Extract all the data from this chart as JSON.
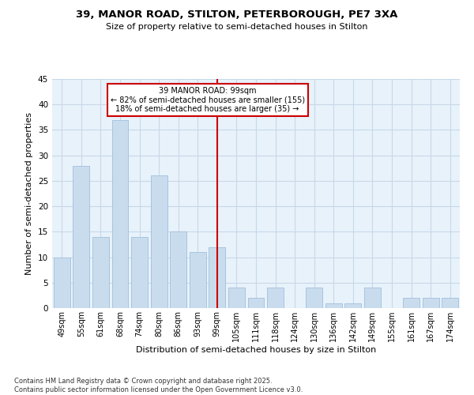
{
  "title1": "39, MANOR ROAD, STILTON, PETERBOROUGH, PE7 3XA",
  "title2": "Size of property relative to semi-detached houses in Stilton",
  "xlabel": "Distribution of semi-detached houses by size in Stilton",
  "ylabel": "Number of semi-detached properties",
  "categories": [
    "49sqm",
    "55sqm",
    "61sqm",
    "68sqm",
    "74sqm",
    "80sqm",
    "86sqm",
    "93sqm",
    "99sqm",
    "105sqm",
    "111sqm",
    "118sqm",
    "124sqm",
    "130sqm",
    "136sqm",
    "142sqm",
    "149sqm",
    "155sqm",
    "161sqm",
    "167sqm",
    "174sqm"
  ],
  "values": [
    10,
    28,
    14,
    37,
    14,
    26,
    15,
    11,
    12,
    4,
    2,
    4,
    0,
    4,
    1,
    1,
    4,
    0,
    2,
    2,
    2
  ],
  "bar_color": "#c9dcee",
  "bar_edgecolor": "#a8c4dd",
  "property_line_index": 8,
  "property_label": "39 MANOR ROAD: 99sqm",
  "annotation_line1": "← 82% of semi-detached houses are smaller (155)",
  "annotation_line2": "18% of semi-detached houses are larger (35) →",
  "vline_color": "#cc0000",
  "annotation_box_edgecolor": "#cc0000",
  "annotation_box_facecolor": "#ffffff",
  "ylim": [
    0,
    45
  ],
  "yticks": [
    0,
    5,
    10,
    15,
    20,
    25,
    30,
    35,
    40,
    45
  ],
  "grid_color": "#c8d8e8",
  "bg_color": "#e8f2fb",
  "footnote": "Contains HM Land Registry data © Crown copyright and database right 2025.\nContains public sector information licensed under the Open Government Licence v3.0."
}
